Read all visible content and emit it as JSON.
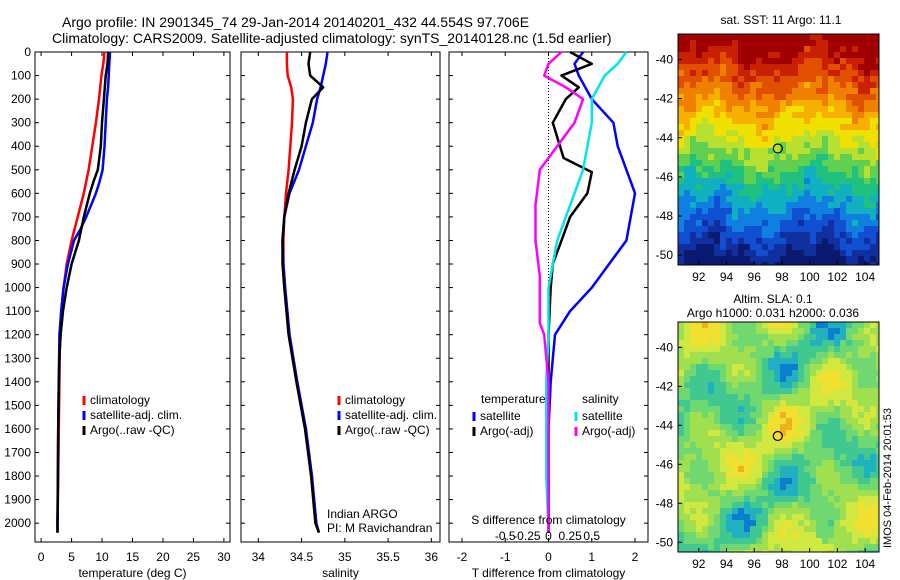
{
  "header": {
    "line1": "Argo profile: IN 2901345_74 29-Jan-2014 20140201_432 44.554S 97.706E",
    "line2": "Climatology: CARS2009. Satellite-adjusted climatology: synTS_20140128.nc (1.5d earlier)"
  },
  "footer_stamp": "IMOS 04-Feb-2014 20:01:53",
  "colors": {
    "climatology": "#ff0000",
    "satellite": "#0000ff",
    "argo": "#000000",
    "argo_salinity_diff": "#ff00ff",
    "satellite_salinity_diff": "#00e5ee"
  },
  "chart_data": [
    {
      "id": "temperature",
      "type": "line",
      "xlabel": "temperature (deg C)",
      "ylabel": "",
      "xlim": [
        -1,
        31
      ],
      "ylim": [
        2080,
        0
      ],
      "xticks": [
        0,
        5,
        10,
        15,
        20,
        25,
        30
      ],
      "yticks": [
        0,
        100,
        200,
        300,
        400,
        500,
        600,
        700,
        800,
        900,
        1000,
        1100,
        1200,
        1300,
        1400,
        1500,
        1600,
        1700,
        1800,
        1900,
        2000
      ],
      "legend": [
        "climatology",
        "satellite-adj. clim.",
        "Argo(..raw -QC)"
      ],
      "legend_position": "lower-middle",
      "series": [
        {
          "name": "climatology",
          "color": "#ff0000",
          "x": [
            10.4,
            10.2,
            9.9,
            9.5,
            9.0,
            8.4,
            7.8,
            7.0,
            6.0,
            5.0,
            4.2,
            3.7,
            3.3,
            3.1,
            3.0,
            2.9,
            2.85,
            2.8,
            2.75,
            2.7,
            2.7
          ],
          "y": [
            0,
            50,
            100,
            200,
            300,
            400,
            500,
            600,
            700,
            800,
            900,
            1000,
            1100,
            1200,
            1400,
            1600,
            1700,
            1800,
            1900,
            2000,
            2040
          ]
        },
        {
          "name": "satellite-adj. clim.",
          "color": "#0000ff",
          "x": [
            11.3,
            11.2,
            11.1,
            11.0,
            10.8,
            10.6,
            10.4,
            10.1,
            9.6,
            9.0,
            8.2,
            7.4,
            6.5,
            5.4,
            4.4,
            3.7,
            3.3,
            3.0,
            2.9,
            2.8,
            2.75,
            2.7,
            2.7
          ],
          "y": [
            0,
            50,
            100,
            150,
            200,
            300,
            400,
            500,
            550,
            600,
            650,
            700,
            750,
            800,
            900,
            1000,
            1100,
            1200,
            1400,
            1600,
            1800,
            2000,
            2040
          ]
        },
        {
          "name": "Argo(..raw -QC)",
          "color": "#000000",
          "x": [
            11.0,
            10.9,
            10.6,
            10.3,
            10.0,
            9.8,
            9.3,
            8.6,
            8.0,
            7.0,
            6.2,
            5.0,
            4.2,
            3.6,
            3.2,
            3.0,
            2.9,
            2.8,
            2.75,
            2.7,
            2.7
          ],
          "y": [
            0,
            50,
            100,
            200,
            300,
            400,
            500,
            550,
            600,
            700,
            800,
            900,
            1000,
            1100,
            1200,
            1300,
            1400,
            1600,
            1800,
            2000,
            2040
          ]
        }
      ]
    },
    {
      "id": "salinity",
      "type": "line",
      "xlabel": "salinity",
      "ylabel": "",
      "xlim": [
        33.8,
        36.1
      ],
      "ylim": [
        2080,
        0
      ],
      "xticks": [
        34,
        34.5,
        35,
        35.5,
        36
      ],
      "legend": [
        "climatology",
        "satellite-adj. clim.",
        "Argo(..raw -QC)"
      ],
      "legend_position": "lower-middle",
      "annotations": [
        "Indian ARGO",
        "PI: M Ravichandran"
      ],
      "series": [
        {
          "name": "climatology",
          "color": "#ff0000",
          "x": [
            34.33,
            34.33,
            34.34,
            34.38,
            34.4,
            34.39,
            34.37,
            34.35,
            34.32,
            34.3,
            34.29,
            34.29,
            34.31,
            34.36,
            34.45,
            34.55,
            34.62,
            34.67,
            34.7
          ],
          "y": [
            0,
            50,
            100,
            150,
            200,
            300,
            400,
            500,
            600,
            700,
            800,
            900,
            1000,
            1200,
            1400,
            1600,
            1800,
            2000,
            2040
          ]
        },
        {
          "name": "satellite-adj. clim.",
          "color": "#0000ff",
          "x": [
            34.8,
            34.78,
            34.75,
            34.72,
            34.68,
            34.63,
            34.55,
            34.47,
            34.36,
            34.3,
            34.28,
            34.29,
            34.31,
            34.36,
            34.45,
            34.55,
            34.62,
            34.67,
            34.7
          ],
          "y": [
            0,
            50,
            100,
            150,
            200,
            300,
            400,
            500,
            600,
            700,
            800,
            900,
            1000,
            1200,
            1400,
            1600,
            1800,
            2000,
            2040
          ]
        },
        {
          "name": "Argo(..raw -QC)",
          "color": "#000000",
          "x": [
            34.6,
            34.58,
            34.6,
            34.75,
            34.62,
            34.55,
            34.5,
            34.42,
            34.35,
            34.3,
            34.28,
            34.28,
            34.3,
            34.35,
            34.44,
            34.54,
            34.61,
            34.66,
            34.7
          ],
          "y": [
            0,
            50,
            100,
            150,
            200,
            300,
            400,
            500,
            600,
            700,
            800,
            900,
            1000,
            1200,
            1400,
            1600,
            1800,
            2000,
            2040
          ]
        }
      ]
    },
    {
      "id": "differences",
      "type": "line",
      "xlabel": "T difference from climatology",
      "xlabel2": "S difference from climatology",
      "ylabel": "",
      "xlim": [
        -2.3,
        2.3
      ],
      "ylim": [
        2080,
        0
      ],
      "xticks": [
        -2,
        -1,
        0,
        1,
        2
      ],
      "xticklabels": [
        "-2",
        "-1",
        "0",
        "1",
        "2"
      ],
      "xticks2": [
        -1,
        -0.5,
        0,
        0.5,
        1
      ],
      "xticklabels2": [
        "-0.5",
        "-0.25",
        "0",
        "0.25",
        "0.5"
      ],
      "reference_line": 0,
      "legend_groups": [
        {
          "title": "temperature",
          "entries": [
            "satellite",
            "Argo(-adj)"
          ]
        },
        {
          "title": "salinity",
          "entries": [
            "satellite",
            "Argo(-adj)"
          ]
        }
      ],
      "series": [
        {
          "name": "temperature satellite",
          "color": "#0000ff",
          "x": [
            0.8,
            0.6,
            0.7,
            1.0,
            1.5,
            1.6,
            1.8,
            2.0,
            1.9,
            1.8,
            1.4,
            1.0,
            0.5,
            0.15,
            0.05,
            0.0,
            0.0
          ],
          "y": [
            0,
            50,
            100,
            200,
            300,
            400,
            500,
            600,
            700,
            800,
            900,
            1000,
            1100,
            1200,
            1400,
            1600,
            2040
          ]
        },
        {
          "name": "temperature Argo(-adj)",
          "color": "#000000",
          "x": [
            0.5,
            1.0,
            0.3,
            0.7,
            0.4,
            0.1,
            0.35,
            1.0,
            0.9,
            0.5,
            0.3,
            0.1,
            0.05,
            0.0,
            0.0,
            0.0
          ],
          "y": [
            0,
            50,
            100,
            150,
            200,
            300,
            450,
            510,
            600,
            700,
            800,
            900,
            1000,
            1200,
            1600,
            2040
          ]
        },
        {
          "name": "salinity satellite",
          "color": "#00e5ee",
          "x": [
            1.8,
            1.6,
            1.3,
            1.0,
            1.0,
            0.9,
            0.8,
            0.6,
            0.4,
            0.2,
            0.1,
            0.0,
            0.0,
            -0.05,
            -0.05,
            0.0
          ],
          "y": [
            0,
            50,
            100,
            200,
            300,
            400,
            500,
            600,
            700,
            800,
            900,
            1000,
            1200,
            1400,
            1800,
            2040
          ]
        },
        {
          "name": "salinity Argo(-adj)",
          "color": "#ff00ff",
          "x": [
            0.3,
            0.0,
            -0.1,
            0.4,
            0.8,
            0.6,
            0.2,
            -0.2,
            -0.3,
            -0.3,
            -0.2,
            -0.2,
            -0.1,
            0.0,
            0.0
          ],
          "y": [
            0,
            50,
            100,
            150,
            200,
            300,
            400,
            500,
            650,
            800,
            950,
            1150,
            1200,
            1400,
            2040
          ]
        }
      ]
    },
    {
      "id": "sst-map",
      "type": "heatmap",
      "title": "sat. SST: 11 Argo: 11.1",
      "xlim": [
        90.5,
        105
      ],
      "ylim": [
        -50.5,
        -38.7
      ],
      "xticks": [
        92,
        94,
        96,
        98,
        100,
        102,
        104
      ],
      "yticks": [
        -40,
        -42,
        -44,
        -46,
        -48,
        -50
      ],
      "marker": {
        "lon": 97.7,
        "lat": -44.55
      }
    },
    {
      "id": "sla-map",
      "type": "heatmap",
      "title": "Altim. SLA: 0.1",
      "subtitle": "Argo h1000: 0.031 h2000: 0.036",
      "xlim": [
        90.5,
        105
      ],
      "ylim": [
        -50.5,
        -38.7
      ],
      "xticks": [
        92,
        94,
        96,
        98,
        100,
        102,
        104
      ],
      "yticks": [
        -40,
        -42,
        -44,
        -46,
        -48,
        -50
      ],
      "marker": {
        "lon": 97.7,
        "lat": -44.55
      }
    }
  ]
}
